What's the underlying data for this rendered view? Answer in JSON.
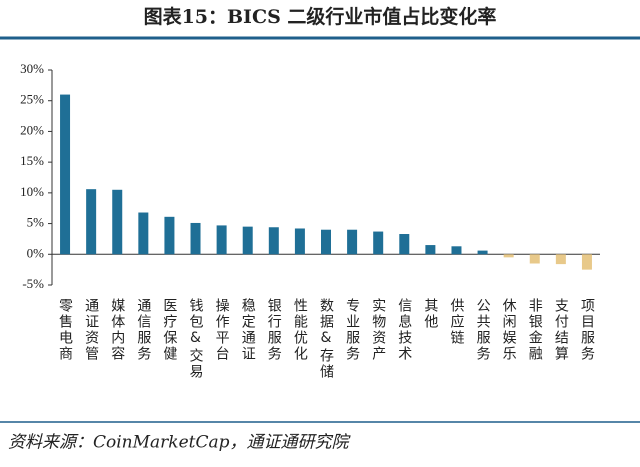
{
  "chart_data": {
    "type": "bar",
    "title": "图表15：BICS 二级行业市值占比变化率",
    "source": "资料来源：CoinMarketCap，通证通研究院",
    "categories": [
      "零售电商",
      "通证资管",
      "媒体内容",
      "通信服务",
      "医疗保健",
      "钱包&交易",
      "操作平台",
      "稳定通证",
      "银行服务",
      "性能优化",
      "数据&存储",
      "专业服务",
      "实物资产",
      "信息技术",
      "其他",
      "供应链",
      "公共服务",
      "休闲娱乐",
      "非银金融",
      "支付结算",
      "项目服务"
    ],
    "values": [
      26,
      10.6,
      10.5,
      6.8,
      6.1,
      5.1,
      4.7,
      4.5,
      4.4,
      4.2,
      4.0,
      4.0,
      3.7,
      3.3,
      1.5,
      1.3,
      0.6,
      -0.5,
      -1.5,
      -1.6,
      -2.5
    ],
    "color": "#1f6f96",
    "negative_color": "#e8c98a",
    "ylim": [
      -5,
      30
    ],
    "yticks": [
      {
        "value": -5,
        "label": "-5%"
      },
      {
        "value": 0,
        "label": "0%"
      },
      {
        "value": 5,
        "label": "5%"
      },
      {
        "value": 10,
        "label": "10%"
      },
      {
        "value": 15,
        "label": "15%"
      },
      {
        "value": 20,
        "label": "20%"
      },
      {
        "value": 25,
        "label": "25%"
      },
      {
        "value": 30,
        "label": "30%"
      }
    ],
    "grid": false
  }
}
